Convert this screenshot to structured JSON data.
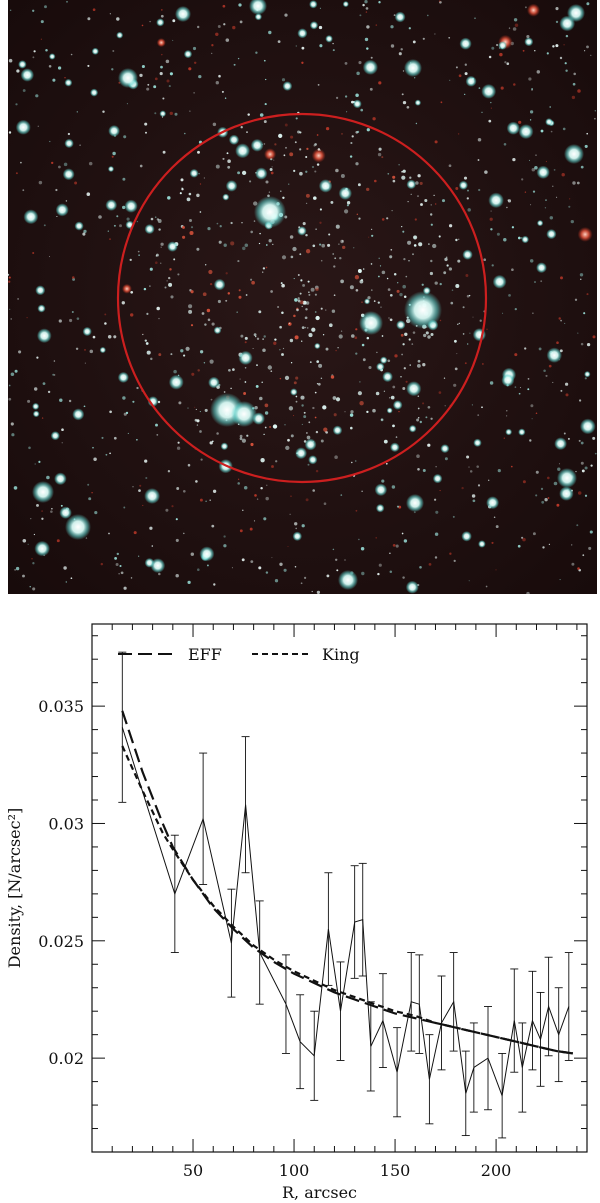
{
  "image_panel": {
    "description_icon": "star-field-image",
    "circle_color": "#cc1f1f"
  },
  "chart_data": {
    "type": "line",
    "title": "",
    "xlabel": "R, arcsec",
    "ylabel": "Density, [N/arcsec²]",
    "xlim": [
      0,
      245
    ],
    "ylim": [
      0.016,
      0.0385
    ],
    "xticks": [
      50,
      100,
      150,
      200
    ],
    "yticks": [
      0.02,
      0.025,
      0.03,
      0.035
    ],
    "ytick_labels": [
      "0.02",
      "0.025",
      "0.03",
      "0.035"
    ],
    "legend_position": "top",
    "series": [
      {
        "style": "solid-with-errorbars",
        "x": [
          15,
          41,
          55,
          69,
          76,
          83,
          96,
          103,
          110,
          117,
          123,
          130,
          134,
          138,
          144,
          151,
          158,
          162,
          167,
          173,
          179,
          185,
          189,
          196,
          203,
          209,
          213,
          218,
          222,
          226,
          231,
          236
        ],
        "y": [
          0.0341,
          0.027,
          0.0302,
          0.0249,
          0.0308,
          0.0245,
          0.0223,
          0.0207,
          0.0201,
          0.0255,
          0.022,
          0.0258,
          0.0259,
          0.0205,
          0.0216,
          0.0194,
          0.0224,
          0.0223,
          0.0191,
          0.0215,
          0.0224,
          0.0185,
          0.0196,
          0.02,
          0.0184,
          0.0216,
          0.0196,
          0.0216,
          0.0208,
          0.0222,
          0.021,
          0.0222
        ],
        "err": [
          0.0032,
          0.0025,
          0.0028,
          0.0023,
          0.0029,
          0.0022,
          0.0021,
          0.002,
          0.0019,
          0.0024,
          0.0021,
          0.0024,
          0.0024,
          0.0019,
          0.002,
          0.0019,
          0.0021,
          0.0021,
          0.0019,
          0.002,
          0.0021,
          0.0018,
          0.0019,
          0.0022,
          0.0018,
          0.0022,
          0.0019,
          0.0021,
          0.002,
          0.0021,
          0.002,
          0.0023
        ]
      },
      {
        "name": "EFF",
        "style": "long-dash",
        "x": [
          15,
          25,
          35,
          40,
          50,
          60,
          70,
          80,
          90,
          100,
          110,
          120,
          130,
          140,
          150,
          160,
          170,
          180,
          190,
          200,
          210,
          220,
          230,
          238
        ],
        "y": [
          0.0348,
          0.0322,
          0.03,
          0.029,
          0.0276,
          0.0264,
          0.0255,
          0.0247,
          0.0241,
          0.0236,
          0.0232,
          0.0228,
          0.0225,
          0.0222,
          0.0219,
          0.0217,
          0.0215,
          0.0213,
          0.0211,
          0.0209,
          0.0207,
          0.0205,
          0.0203,
          0.0202
        ]
      },
      {
        "name": "King",
        "style": "short-dash",
        "x": [
          15,
          25,
          35,
          40,
          50,
          60,
          70,
          80,
          90,
          100,
          110,
          120,
          130,
          140,
          150,
          160,
          170,
          180,
          190,
          200,
          210,
          220,
          230,
          238
        ],
        "y": [
          0.0333,
          0.0314,
          0.0296,
          0.0289,
          0.0276,
          0.0265,
          0.0256,
          0.0248,
          0.0242,
          0.0237,
          0.0233,
          0.0229,
          0.0226,
          0.0223,
          0.022,
          0.0218,
          0.0215,
          0.0213,
          0.0211,
          0.0209,
          0.0207,
          0.0205,
          0.0203,
          0.0202
        ]
      }
    ]
  }
}
